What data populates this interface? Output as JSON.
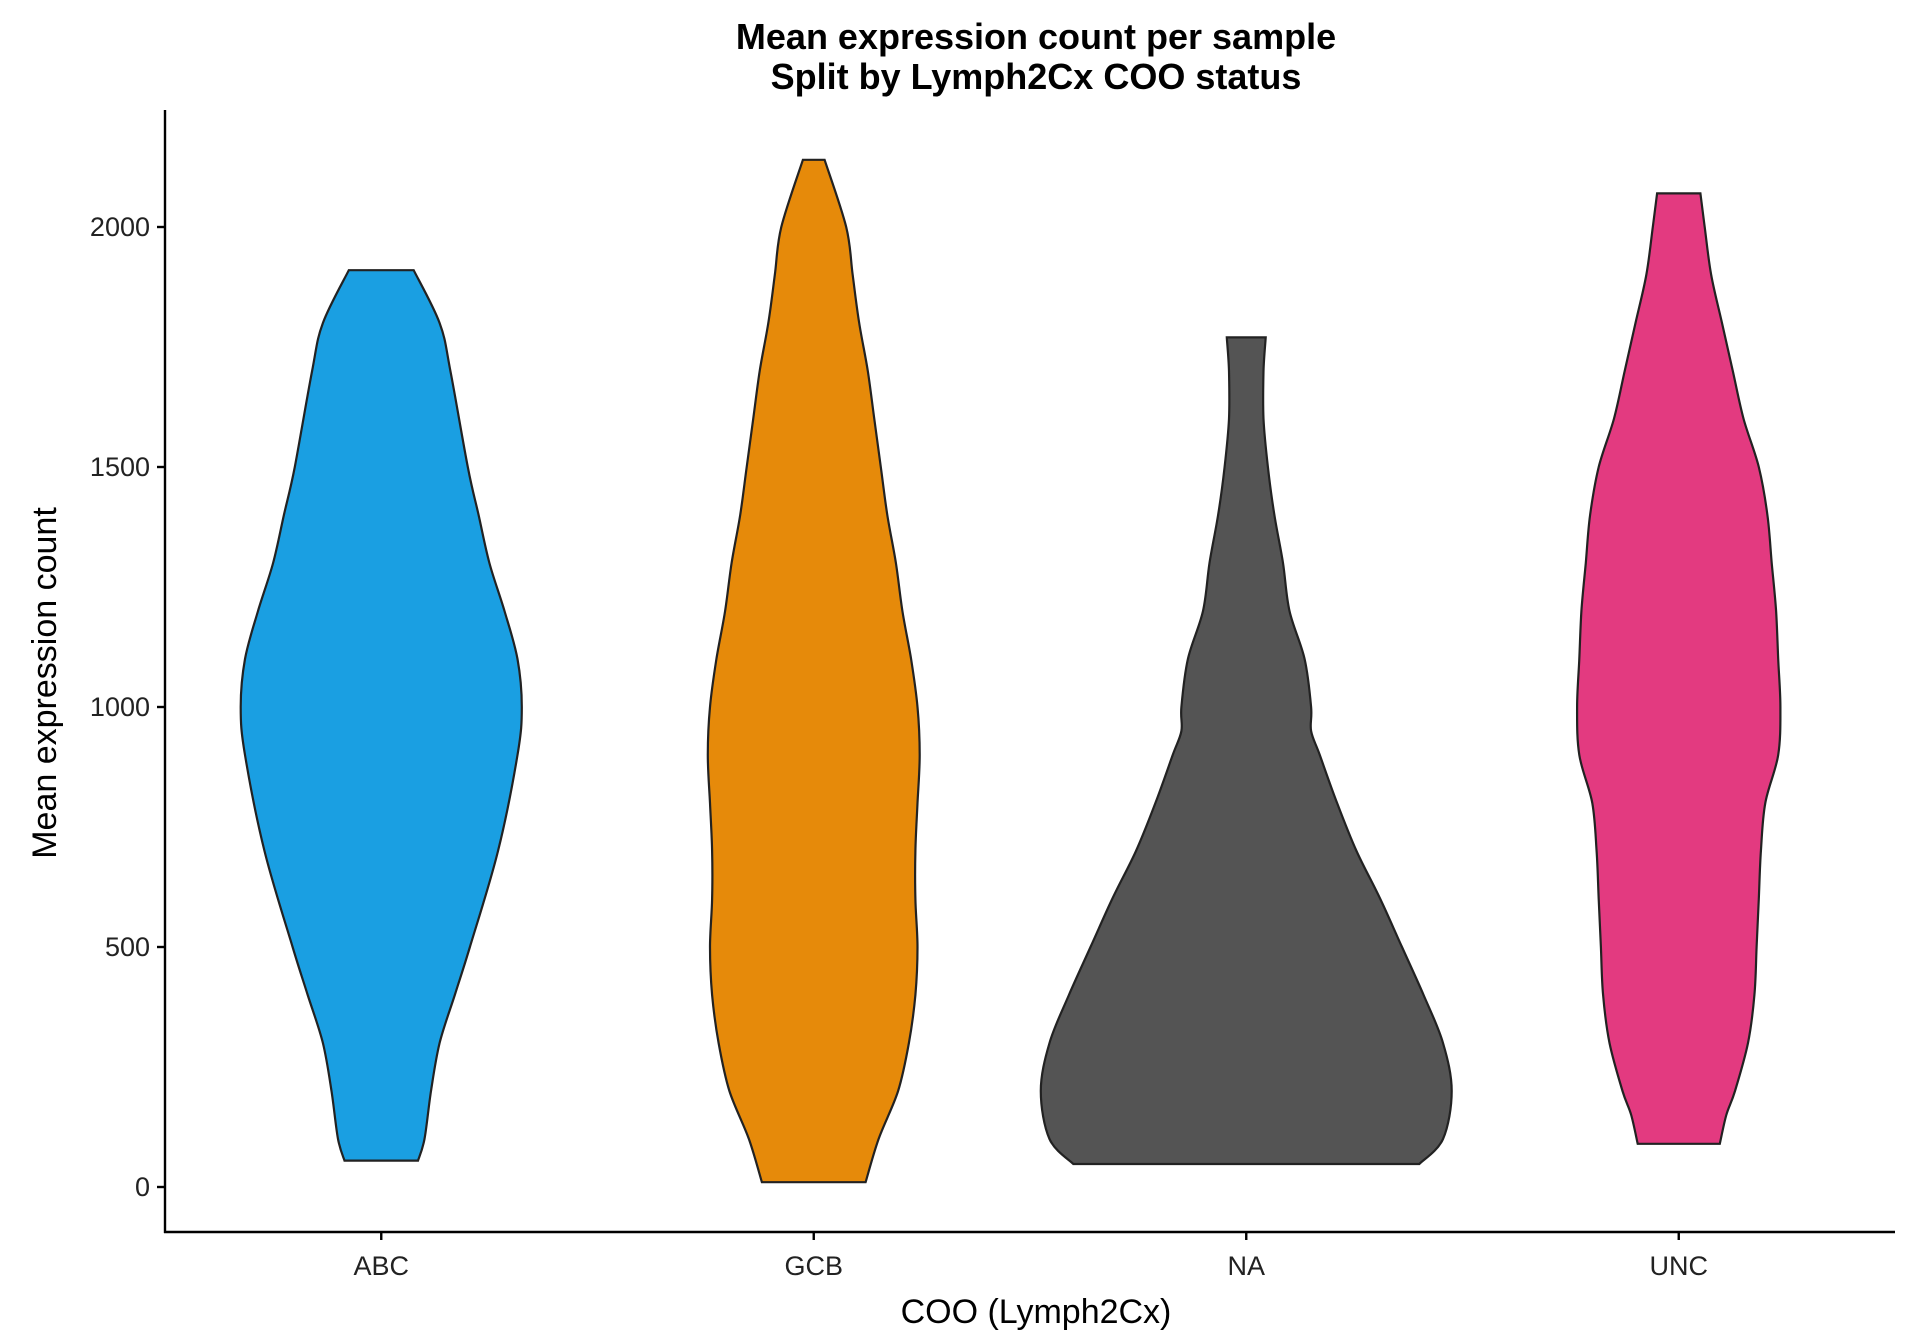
{
  "chart_data": {
    "type": "violin",
    "title": "Mean expression count per sample",
    "subtitle": "Split by Lymph2Cx COO status",
    "xlabel": "COO (Lymph2Cx)",
    "ylabel": "Mean expression count",
    "ylim": [
      -100,
      2230
    ],
    "yticks": [
      0,
      500,
      1000,
      1500,
      2000
    ],
    "categories": [
      "ABC",
      "GCB",
      "NA",
      "UNC"
    ],
    "grid": false,
    "legend": "none",
    "series": [
      {
        "category": "ABC",
        "color": "#1a9fe2",
        "min": 55,
        "max": 1910,
        "density": [
          [
            55,
            0.17
          ],
          [
            100,
            0.2
          ],
          [
            200,
            0.23
          ],
          [
            300,
            0.27
          ],
          [
            400,
            0.34
          ],
          [
            500,
            0.41
          ],
          [
            700,
            0.54
          ],
          [
            900,
            0.63
          ],
          [
            1000,
            0.65
          ],
          [
            1100,
            0.63
          ],
          [
            1200,
            0.57
          ],
          [
            1300,
            0.5
          ],
          [
            1400,
            0.45
          ],
          [
            1500,
            0.4
          ],
          [
            1700,
            0.32
          ],
          [
            1800,
            0.27
          ],
          [
            1910,
            0.15
          ]
        ]
      },
      {
        "category": "GCB",
        "color": "#e68a0a",
        "min": 10,
        "max": 2140,
        "density": [
          [
            10,
            0.24
          ],
          [
            100,
            0.3
          ],
          [
            200,
            0.39
          ],
          [
            300,
            0.44
          ],
          [
            400,
            0.47
          ],
          [
            500,
            0.48
          ],
          [
            600,
            0.47
          ],
          [
            700,
            0.47
          ],
          [
            800,
            0.48
          ],
          [
            900,
            0.49
          ],
          [
            1000,
            0.48
          ],
          [
            1100,
            0.45
          ],
          [
            1200,
            0.41
          ],
          [
            1300,
            0.38
          ],
          [
            1400,
            0.34
          ],
          [
            1500,
            0.31
          ],
          [
            1600,
            0.28
          ],
          [
            1700,
            0.25
          ],
          [
            1800,
            0.21
          ],
          [
            1900,
            0.18
          ],
          [
            2000,
            0.15
          ],
          [
            2140,
            0.05
          ]
        ]
      },
      {
        "category": "NA",
        "color": "#545454",
        "min": 48,
        "max": 1770,
        "density": [
          [
            48,
            0.8
          ],
          [
            100,
            0.91
          ],
          [
            200,
            0.95
          ],
          [
            300,
            0.91
          ],
          [
            400,
            0.82
          ],
          [
            500,
            0.72
          ],
          [
            600,
            0.62
          ],
          [
            700,
            0.51
          ],
          [
            800,
            0.42
          ],
          [
            900,
            0.34
          ],
          [
            950,
            0.3
          ],
          [
            1000,
            0.3
          ],
          [
            1100,
            0.27
          ],
          [
            1200,
            0.2
          ],
          [
            1300,
            0.17
          ],
          [
            1400,
            0.13
          ],
          [
            1500,
            0.1
          ],
          [
            1600,
            0.08
          ],
          [
            1700,
            0.08
          ],
          [
            1770,
            0.09
          ]
        ]
      },
      {
        "category": "UNC",
        "color": "#e33a80",
        "min": 90,
        "max": 2070,
        "density": [
          [
            90,
            0.19
          ],
          [
            150,
            0.22
          ],
          [
            200,
            0.26
          ],
          [
            300,
            0.32
          ],
          [
            400,
            0.35
          ],
          [
            500,
            0.36
          ],
          [
            600,
            0.37
          ],
          [
            700,
            0.38
          ],
          [
            800,
            0.4
          ],
          [
            900,
            0.46
          ],
          [
            1000,
            0.47
          ],
          [
            1100,
            0.46
          ],
          [
            1200,
            0.45
          ],
          [
            1300,
            0.43
          ],
          [
            1400,
            0.41
          ],
          [
            1500,
            0.37
          ],
          [
            1600,
            0.3
          ],
          [
            1700,
            0.25
          ],
          [
            1800,
            0.2
          ],
          [
            1900,
            0.15
          ],
          [
            2000,
            0.12
          ],
          [
            2070,
            0.1
          ]
        ]
      }
    ]
  }
}
